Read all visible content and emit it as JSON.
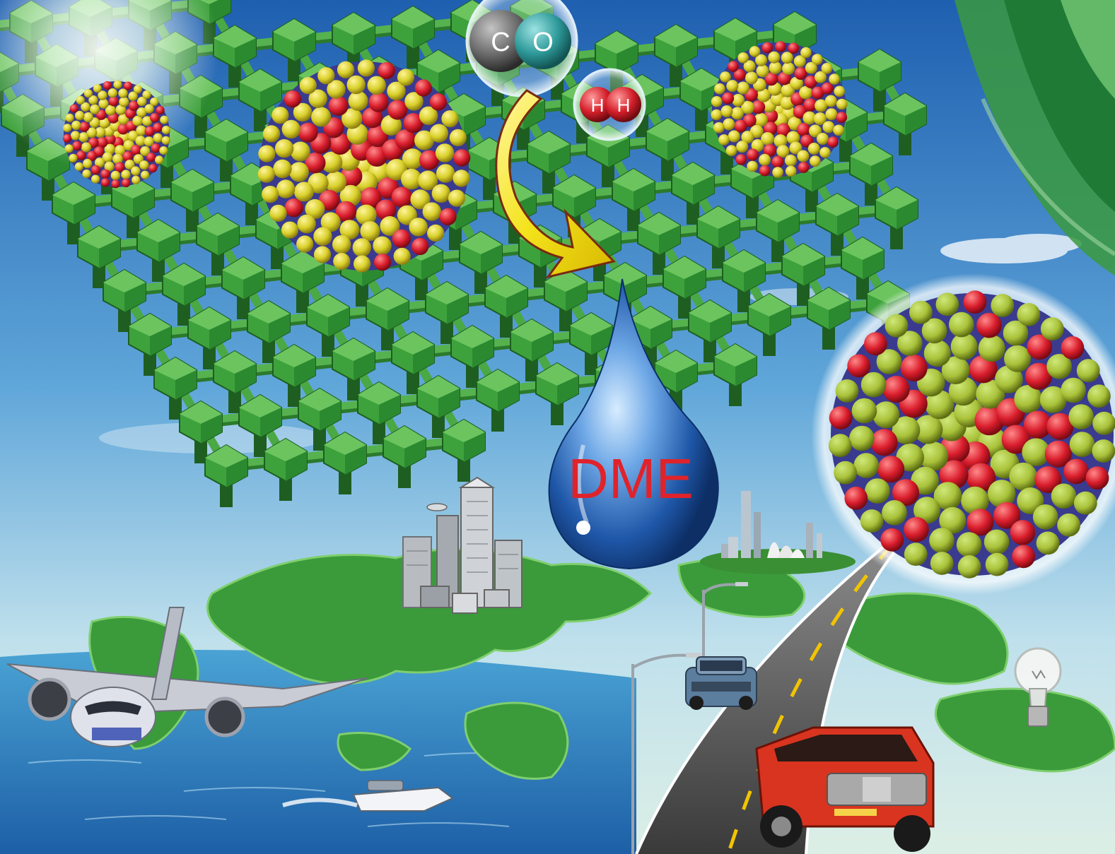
{
  "molecules": {
    "carbon_monoxide": {
      "atoms": [
        "C",
        "O"
      ],
      "colors": {
        "carbon": "#6b6b6b",
        "oxygen": "#2f9a9a"
      }
    },
    "hydrogen": {
      "atoms": [
        "H",
        "H"
      ],
      "color": "#d41f2a"
    }
  },
  "product": {
    "label": "DME",
    "label_color": "#e0232b",
    "drop_color": "#1d5fae"
  },
  "palette": {
    "framework_green": "#3ea23c",
    "framework_dark": "#1d5e1f",
    "cluster_yellow": "#d8cf2a",
    "cluster_red": "#d91d2c",
    "cluster_core": "#3a3a8f",
    "arrow_yellow": "#f4e31c",
    "sky_top": "#1f5fb0",
    "sea": "#1e73b8",
    "land": "#3b9b3a",
    "road": "#4a4a4a",
    "car_red": "#d8341f",
    "car_blue": "#5b7d9e"
  },
  "icons": [
    "city-skyline-icon",
    "opera-house-skyline-icon",
    "airplane-icon",
    "speedboat-icon",
    "suv-icon",
    "pickup-truck-icon",
    "light-bulb-icon",
    "street-lamp-icon"
  ]
}
